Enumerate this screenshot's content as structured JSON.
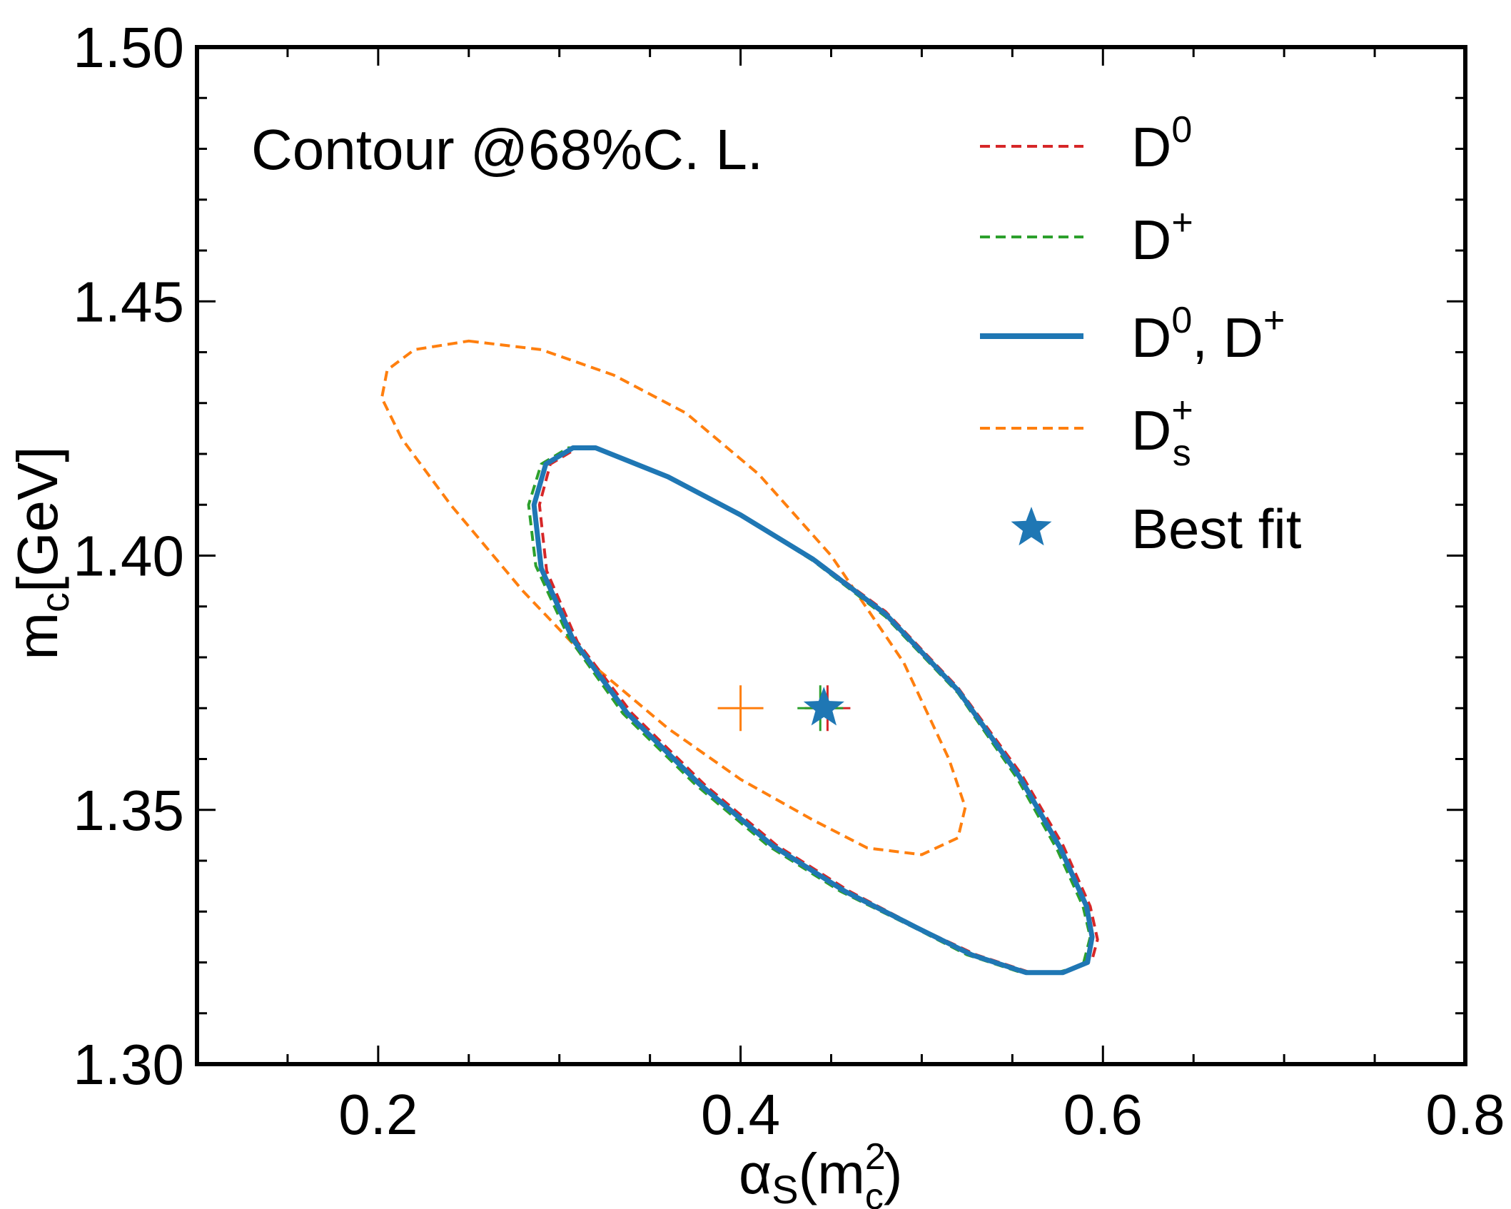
{
  "chart_data": {
    "type": "contour",
    "annotation": "Contour @68%C. L.",
    "xlabel": {
      "main": "α",
      "sub": "S",
      "paren_open": "(m",
      "sup": "2",
      "sub2": "c",
      "paren_close": ")"
    },
    "ylabel": {
      "main": "m",
      "sub": "c",
      "rest": "[GeV]"
    },
    "xlim": [
      0.1,
      0.8
    ],
    "ylim": [
      1.3,
      1.5
    ],
    "xticks": [
      0.2,
      0.4,
      0.6,
      0.8
    ],
    "xtick_labels": [
      "0.2",
      "0.4",
      "0.6",
      "0.8"
    ],
    "yticks": [
      1.3,
      1.35,
      1.4,
      1.45,
      1.5
    ],
    "ytick_labels": [
      "1.30",
      "1.35",
      "1.40",
      "1.45",
      "1.50"
    ],
    "legend_position": "top-right",
    "series": [
      {
        "key": "d0",
        "name": "D0",
        "legend": {
          "base": "D",
          "sup": "0",
          "sub": ""
        },
        "color": "#d62728",
        "dashed": true,
        "contour": [
          [
            0.448,
            1.3705
          ],
          [
            0.448,
            1.3705
          ]
        ],
        "center": [
          0.448,
          1.37
        ],
        "x_extent": [
          0.289,
          0.597
        ],
        "y_extent": [
          1.318,
          1.421
        ]
      },
      {
        "key": "dplus",
        "name": "D+",
        "legend": {
          "base": "D",
          "sup": "+",
          "sub": ""
        },
        "color": "#2ca02c",
        "dashed": true,
        "center": [
          0.444,
          1.37
        ],
        "x_extent": [
          0.283,
          0.593
        ],
        "y_extent": [
          1.318,
          1.421
        ]
      },
      {
        "key": "d0dplus",
        "name": "D0, D+",
        "legend": {
          "base": "D",
          "sup": "0",
          "sub": "",
          "extra": ", D",
          "extra_sup": "+"
        },
        "color": "#1f77b4",
        "dashed": false,
        "center": [
          0.446,
          1.37
        ],
        "x_extent": [
          0.286,
          0.594
        ],
        "y_extent": [
          1.318,
          1.421
        ]
      },
      {
        "key": "ds",
        "name": "Ds+",
        "legend": {
          "base": "D",
          "sup": "+",
          "sub": "s"
        },
        "color": "#ff7f0e",
        "dashed": true,
        "center": [
          0.4,
          1.37
        ],
        "x_extent": [
          0.202,
          0.524
        ],
        "y_extent": [
          1.341,
          1.442
        ]
      }
    ],
    "contours": {
      "d0": [
        [
          0.32,
          1.4212
        ],
        [
          0.36,
          1.4155
        ],
        [
          0.4,
          1.408
        ],
        [
          0.44,
          1.3995
        ],
        [
          0.48,
          1.389
        ],
        [
          0.52,
          1.374
        ],
        [
          0.555,
          1.357
        ],
        [
          0.578,
          1.343
        ],
        [
          0.593,
          1.331
        ],
        [
          0.597,
          1.3245
        ],
        [
          0.594,
          1.3205
        ],
        [
          0.58,
          1.3182
        ],
        [
          0.56,
          1.318
        ],
        [
          0.53,
          1.3215
        ],
        [
          0.5,
          1.3265
        ],
        [
          0.46,
          1.334
        ],
        [
          0.42,
          1.343
        ],
        [
          0.38,
          1.355
        ],
        [
          0.34,
          1.369
        ],
        [
          0.31,
          1.383
        ],
        [
          0.293,
          1.397
        ],
        [
          0.289,
          1.41
        ],
        [
          0.295,
          1.418
        ],
        [
          0.31,
          1.4212
        ],
        [
          0.32,
          1.4212
        ]
      ],
      "dplus": [
        [
          0.32,
          1.4212
        ],
        [
          0.36,
          1.4155
        ],
        [
          0.4,
          1.408
        ],
        [
          0.44,
          1.399
        ],
        [
          0.48,
          1.388
        ],
        [
          0.52,
          1.373
        ],
        [
          0.553,
          1.356
        ],
        [
          0.575,
          1.342
        ],
        [
          0.589,
          1.331
        ],
        [
          0.593,
          1.325
        ],
        [
          0.589,
          1.3195
        ],
        [
          0.575,
          1.318
        ],
        [
          0.555,
          1.318
        ],
        [
          0.525,
          1.3215
        ],
        [
          0.495,
          1.327
        ],
        [
          0.455,
          1.334
        ],
        [
          0.415,
          1.343
        ],
        [
          0.375,
          1.355
        ],
        [
          0.335,
          1.369
        ],
        [
          0.305,
          1.384
        ],
        [
          0.287,
          1.398
        ],
        [
          0.283,
          1.41
        ],
        [
          0.29,
          1.418
        ],
        [
          0.305,
          1.4212
        ],
        [
          0.32,
          1.4212
        ]
      ],
      "d0dplus": [
        [
          0.32,
          1.4212
        ],
        [
          0.36,
          1.4155
        ],
        [
          0.4,
          1.408
        ],
        [
          0.44,
          1.3993
        ],
        [
          0.48,
          1.3885
        ],
        [
          0.52,
          1.3735
        ],
        [
          0.554,
          1.3565
        ],
        [
          0.5765,
          1.3425
        ],
        [
          0.591,
          1.331
        ],
        [
          0.594,
          1.325
        ],
        [
          0.5915,
          1.32
        ],
        [
          0.578,
          1.318
        ],
        [
          0.5575,
          1.318
        ],
        [
          0.5275,
          1.3215
        ],
        [
          0.4975,
          1.3268
        ],
        [
          0.4575,
          1.334
        ],
        [
          0.4175,
          1.343
        ],
        [
          0.3775,
          1.355
        ],
        [
          0.3375,
          1.369
        ],
        [
          0.3075,
          1.3835
        ],
        [
          0.29,
          1.3975
        ],
        [
          0.286,
          1.41
        ],
        [
          0.2925,
          1.418
        ],
        [
          0.3075,
          1.4212
        ],
        [
          0.32,
          1.4212
        ]
      ],
      "ds": [
        [
          0.25,
          1.4422
        ],
        [
          0.29,
          1.4405
        ],
        [
          0.33,
          1.4355
        ],
        [
          0.37,
          1.428
        ],
        [
          0.41,
          1.416
        ],
        [
          0.45,
          1.4
        ],
        [
          0.49,
          1.379
        ],
        [
          0.515,
          1.36
        ],
        [
          0.524,
          1.3505
        ],
        [
          0.52,
          1.3445
        ],
        [
          0.5,
          1.3412
        ],
        [
          0.47,
          1.3425
        ],
        [
          0.44,
          1.348
        ],
        [
          0.4,
          1.356
        ],
        [
          0.36,
          1.366
        ],
        [
          0.32,
          1.378
        ],
        [
          0.28,
          1.393
        ],
        [
          0.24,
          1.41
        ],
        [
          0.213,
          1.423
        ],
        [
          0.202,
          1.431
        ],
        [
          0.205,
          1.4365
        ],
        [
          0.22,
          1.4405
        ],
        [
          0.25,
          1.4422
        ]
      ]
    },
    "best_fit_markers": [
      {
        "series": "d0",
        "marker": "plus",
        "x": 0.448,
        "y": 1.37,
        "color": "#d62728"
      },
      {
        "series": "dplus",
        "marker": "plus",
        "x": 0.444,
        "y": 1.37,
        "color": "#2ca02c"
      },
      {
        "series": "ds",
        "marker": "plus",
        "x": 0.4,
        "y": 1.37,
        "color": "#ff7f0e"
      },
      {
        "series": "d0dplus",
        "marker": "star",
        "x": 0.446,
        "y": 1.37,
        "color": "#1f77b4"
      }
    ],
    "best_fit_label": "Best fit"
  }
}
